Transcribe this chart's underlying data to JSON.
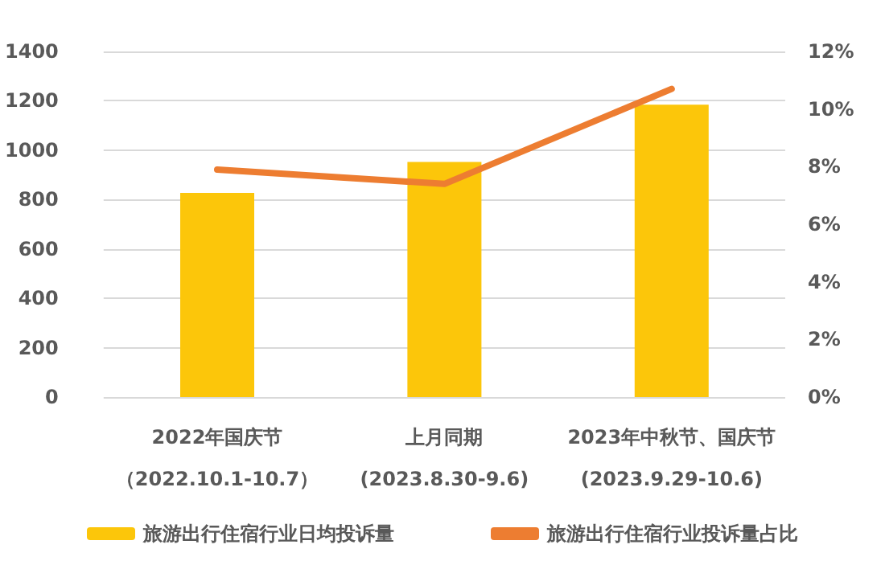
{
  "chart_data": {
    "type": "bar",
    "categories": [
      "2022年国庆节（2022.10.1-10.7）",
      "上月同期(2023.8.30-9.6)",
      "2023年中秋节、国庆节(2023.9.29-10.6)"
    ],
    "series": [
      {
        "name": "旅游出行住宿行业日均投诉量",
        "color": "#fcc60a",
        "values": [
          827,
          952,
          1184
        ]
      },
      {
        "name": "旅游出行住宿行业投诉量占比",
        "type": "line",
        "axis": "y2",
        "color": "#ed7d31",
        "values": [
          7.9,
          7.4,
          10.7
        ]
      }
    ],
    "ylim": [
      0,
      1400
    ],
    "yticks": [
      0,
      200,
      400,
      600,
      800,
      1000,
      1200,
      1400
    ],
    "y2lim": [
      0,
      12
    ],
    "y2ticks": [
      {
        "value": 0,
        "label": "0%"
      },
      {
        "value": 2,
        "label": "2%"
      },
      {
        "value": 4,
        "label": "4%"
      },
      {
        "value": 6,
        "label": "6%"
      },
      {
        "value": 8,
        "label": "8%"
      },
      {
        "value": 10,
        "label": "10%"
      },
      {
        "value": 12,
        "label": "12%"
      }
    ],
    "grid": "y",
    "legend": "bottom",
    "marker": "none"
  }
}
